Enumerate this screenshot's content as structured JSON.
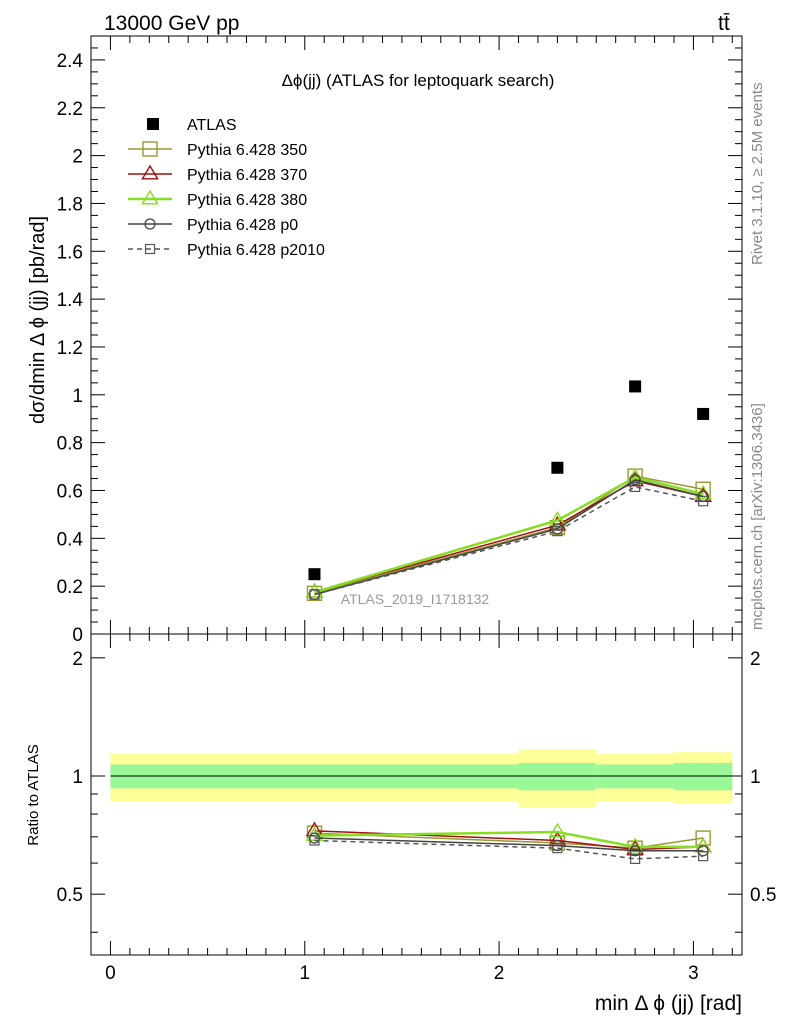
{
  "header": {
    "energy_label": "13000 GeV pp",
    "process_label": "tt̄",
    "plot_title": "Δϕ(jj) (ATLAS for leptoquark search)",
    "watermark": "ATLAS_2019_I1718132",
    "side_rivet": "Rivet 3.1.10, ≥ 2.5M events",
    "side_mcplots": "mcplots.cern.ch [arXiv:1306.3436]"
  },
  "chart_data": [
    {
      "type": "scatter",
      "title": "Δϕ(jj) (ATLAS for leptoquark search)",
      "xlabel": "min Δ ϕ (jj) [rad]",
      "ylabel": "dσ/dmin Δ ϕ (jj) [pb/rad]",
      "xlim": [
        -0.1,
        3.25
      ],
      "ylim": [
        0,
        2.5
      ],
      "yticks": [
        "0",
        "0.2",
        "0.4",
        "0.6",
        "0.8",
        "1",
        "1.2",
        "1.4",
        "1.6",
        "1.8",
        "2",
        "2.2",
        "2.4"
      ],
      "grid": false,
      "legend_position": "top-left",
      "x": [
        1.05,
        2.3,
        2.7,
        3.05
      ],
      "series": [
        {
          "name": "ATLAS",
          "values": [
            0.25,
            0.695,
            1.035,
            0.92
          ],
          "color": "#000000",
          "marker": "filled-square",
          "line": "none"
        },
        {
          "name": "Pythia 6.428 350",
          "values": [
            0.17,
            0.445,
            0.66,
            0.605
          ],
          "color": "#999933",
          "marker": "open-square",
          "line": "solid"
        },
        {
          "name": "Pythia 6.428 370",
          "values": [
            0.175,
            0.455,
            0.64,
            0.575
          ],
          "color": "#a01010",
          "marker": "open-triangle",
          "line": "solid"
        },
        {
          "name": "Pythia 6.428 380",
          "values": [
            0.175,
            0.475,
            0.655,
            0.585
          ],
          "color": "#88dd22",
          "marker": "open-triangle",
          "line": "solid"
        },
        {
          "name": "Pythia 6.428 p0",
          "values": [
            0.165,
            0.44,
            0.645,
            0.575
          ],
          "color": "#444444",
          "marker": "open-circle",
          "line": "solid"
        },
        {
          "name": "Pythia 6.428 p2010",
          "values": [
            0.165,
            0.43,
            0.615,
            0.555
          ],
          "color": "#555555",
          "marker": "open-square-small",
          "line": "dashed"
        }
      ]
    },
    {
      "type": "line",
      "xlabel": "min Δ ϕ (jj) [rad]",
      "ylabel": "Ratio to ATLAS",
      "xlim": [
        -0.1,
        3.25
      ],
      "ylim": [
        0.35,
        2.3
      ],
      "xticks": [
        "0",
        "1",
        "2",
        "3"
      ],
      "yticks": [
        "0.5",
        "1",
        "2"
      ],
      "bands": {
        "edges": [
          0,
          2.1,
          2.5,
          2.9,
          3.2
        ],
        "inner": [
          [
            0.93,
            1.07
          ],
          [
            0.92,
            1.08
          ],
          [
            0.93,
            1.07
          ],
          [
            0.92,
            1.08
          ]
        ],
        "outer": [
          [
            0.86,
            1.14
          ],
          [
            0.83,
            1.17
          ],
          [
            0.86,
            1.14
          ],
          [
            0.85,
            1.15
          ]
        ],
        "inner_color": "#99f999",
        "outer_color": "#ffff99"
      },
      "x": [
        1.05,
        2.3,
        2.7,
        3.05
      ],
      "series": [
        {
          "name": "Pythia 6.428 350",
          "values": [
            0.715,
            0.675,
            0.655,
            0.695
          ],
          "color": "#999933",
          "marker": "open-square",
          "line": "solid"
        },
        {
          "name": "Pythia 6.428 370",
          "values": [
            0.725,
            0.685,
            0.65,
            0.66
          ],
          "color": "#a01010",
          "marker": "open-triangle",
          "line": "solid"
        },
        {
          "name": "Pythia 6.428 380",
          "values": [
            0.705,
            0.72,
            0.66,
            0.66
          ],
          "color": "#88dd22",
          "marker": "open-triangle",
          "line": "solid"
        },
        {
          "name": "Pythia 6.428 p0",
          "values": [
            0.695,
            0.665,
            0.645,
            0.645
          ],
          "color": "#444444",
          "marker": "open-circle",
          "line": "solid"
        },
        {
          "name": "Pythia 6.428 p2010",
          "values": [
            0.685,
            0.655,
            0.615,
            0.625
          ],
          "color": "#555555",
          "marker": "open-square-small",
          "line": "dashed"
        }
      ]
    }
  ]
}
